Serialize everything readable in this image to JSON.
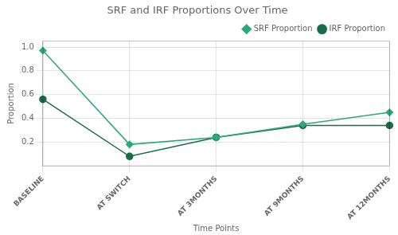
{
  "chart_data": {
    "type": "line",
    "title": "SRF and IRF Proportions Over Time",
    "xlabel": "Time Points",
    "ylabel": "Proportion",
    "categories": [
      "BASELINE",
      "AT SWITCH",
      "AT 3MONTHS",
      "AT 9MONTHS",
      "AT 12MONTHS"
    ],
    "series": [
      {
        "name": "SRF Proportion",
        "color": "#2aaa7a",
        "marker": "diamond",
        "values": [
          0.97,
          0.18,
          0.24,
          0.35,
          0.45
        ]
      },
      {
        "name": "IRF Proportion",
        "color": "#1a6b4a",
        "marker": "circle",
        "values": [
          0.56,
          0.08,
          0.24,
          0.34,
          0.34
        ]
      }
    ],
    "ylim": [
      0.0,
      1.05
    ],
    "yticks": [
      0.2,
      0.4,
      0.6,
      0.8,
      {
        "value": 1.0,
        "label": "1.0"
      }
    ],
    "grid": true,
    "legend": "upper right"
  }
}
